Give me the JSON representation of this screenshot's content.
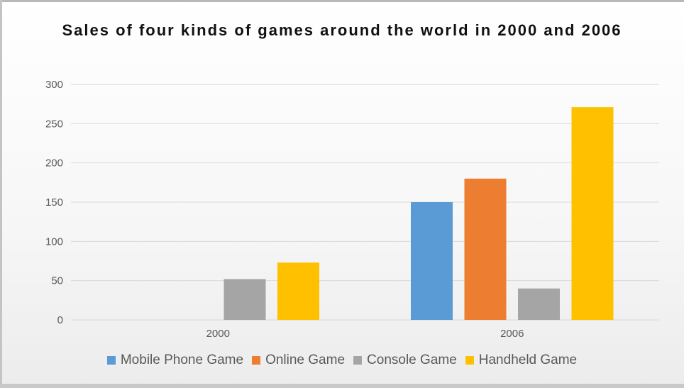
{
  "chart_data": {
    "type": "bar",
    "title": "Sales of four kinds of games around the world in 2000 and 2006",
    "categories": [
      "2000",
      "2006"
    ],
    "series": [
      {
        "name": "Mobile Phone Game",
        "color": "#5b9bd5",
        "values": [
          0,
          150
        ]
      },
      {
        "name": "Online Game",
        "color": "#ed7d31",
        "values": [
          0,
          180
        ]
      },
      {
        "name": "Console Game",
        "color": "#a5a5a5",
        "values": [
          52,
          40
        ]
      },
      {
        "name": "Handheld Game",
        "color": "#ffc000",
        "values": [
          73,
          271
        ]
      }
    ],
    "ylim": [
      0,
      300
    ],
    "yticks": [
      "0",
      "50",
      "100",
      "150",
      "200",
      "250",
      "300"
    ],
    "xlabel": "",
    "ylabel": "",
    "grid": true,
    "legend": "bottom"
  }
}
